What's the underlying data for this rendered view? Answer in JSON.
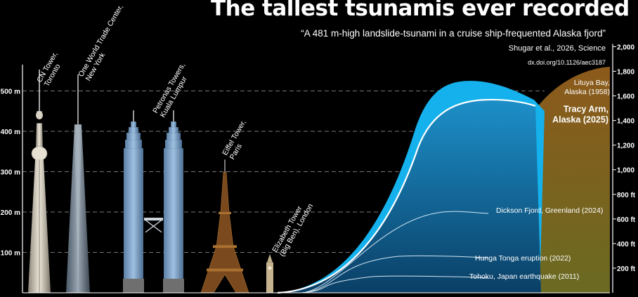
{
  "header": {
    "title": "The tallest tsunamis ever recorded",
    "subtitle": "“A 481 m-high landslide-tsunami in a cruise ship-frequented Alaska fjord”",
    "citation": "Shugar et al., 2026, Science",
    "doi": "dx.doi.org/10.1126/aec3187"
  },
  "colors": {
    "background": "#000000",
    "tsunami_light": "#14b1ec",
    "tsunami_dark": "#0a4f7a",
    "terrain": "#8a5a1c",
    "gridline": "#777777"
  },
  "chart_data": {
    "type": "area",
    "left_axis": {
      "unit": "m",
      "ticks": [
        "100 m",
        "200 m",
        "300 m",
        "400 m",
        "500 m"
      ],
      "values": [
        100,
        200,
        300,
        400,
        500
      ]
    },
    "right_axis": {
      "unit": "ft",
      "ticks": [
        "200 ft",
        "400 ft",
        "600 ft",
        "800 ft",
        "1,000",
        "1,200",
        "1,400",
        "1,600",
        "1,800",
        "2,000"
      ],
      "values": [
        200,
        400,
        600,
        800,
        1000,
        1200,
        1400,
        1600,
        1800,
        2000
      ]
    },
    "grid": true,
    "buildings": [
      {
        "name": "CN Tower, Toronto",
        "label": [
          "CN Tower,",
          "Toronto"
        ],
        "height_m": 553
      },
      {
        "name": "One World Trade Center, New York",
        "label": [
          "One World Trade Center,",
          "New York"
        ],
        "height_m": 541
      },
      {
        "name": "Petronas Towers, Kuala Lumpur",
        "label": [
          "Petronas Towers,",
          "Kuala Lumpur"
        ],
        "height_m": 452
      },
      {
        "name": "Eiffel Tower, Paris",
        "label": [
          "Eiffel Tower,",
          "Paris"
        ],
        "height_m": 330
      },
      {
        "name": "Elizabeth Tower (Big Ben), London",
        "label": [
          "Elizabeth Tower",
          "(Big Ben), London"
        ],
        "height_m": 96
      }
    ],
    "series": [
      {
        "name": "Lituya Bay, Alaska (1958)",
        "label": [
          "Lituya Bay,",
          "Alaska (1958)"
        ],
        "height_m": 524,
        "emphasis": false
      },
      {
        "name": "Tracy Arm, Alaska (2025)",
        "label": [
          "Tracy Arm,",
          "Alaska (2025)"
        ],
        "height_m": 481,
        "emphasis": true
      },
      {
        "name": "Dickson Fjord, Greenland (2024)",
        "label": [
          "Dickson Fjord, Greenland (2024)"
        ],
        "height_m": 200,
        "emphasis": false
      },
      {
        "name": "Hunga Tonga eruption (2022)",
        "label": [
          "Hunga Tonga eruption (2022)"
        ],
        "height_m": 90,
        "emphasis": false
      },
      {
        "name": "Tohoku, Japan earthquake (2011)",
        "label": [
          "Tohoku, Japan earthquake (2011)"
        ],
        "height_m": 40,
        "emphasis": false
      }
    ]
  }
}
